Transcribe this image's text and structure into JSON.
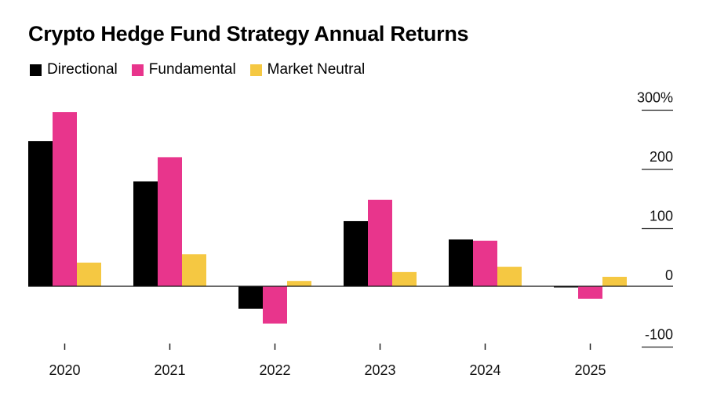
{
  "chart_data": {
    "type": "bar",
    "title": "Crypto Hedge Fund Strategy Annual Returns",
    "categories": [
      "2020",
      "2021",
      "2022",
      "2023",
      "2024",
      "2025"
    ],
    "series": [
      {
        "name": "Directional",
        "color": "#000000",
        "values": [
          245,
          177,
          -38,
          110,
          79,
          -2
        ]
      },
      {
        "name": "Fundamental",
        "color": "#e8358c",
        "values": [
          294,
          218,
          -63,
          146,
          77,
          -21
        ]
      },
      {
        "name": "Market Neutral",
        "color": "#f5c842",
        "values": [
          40,
          54,
          9,
          24,
          33,
          16
        ]
      }
    ],
    "yticks": [
      {
        "value": 300,
        "label": "300%"
      },
      {
        "value": 200,
        "label": "200"
      },
      {
        "value": 100,
        "label": "100"
      },
      {
        "value": 0,
        "label": "0"
      },
      {
        "value": -100,
        "label": "-100"
      }
    ],
    "ylim": [
      -100,
      300
    ],
    "xlabel": "",
    "ylabel": "",
    "grid": false,
    "legend": "top-left",
    "y_axis_side": "right"
  }
}
